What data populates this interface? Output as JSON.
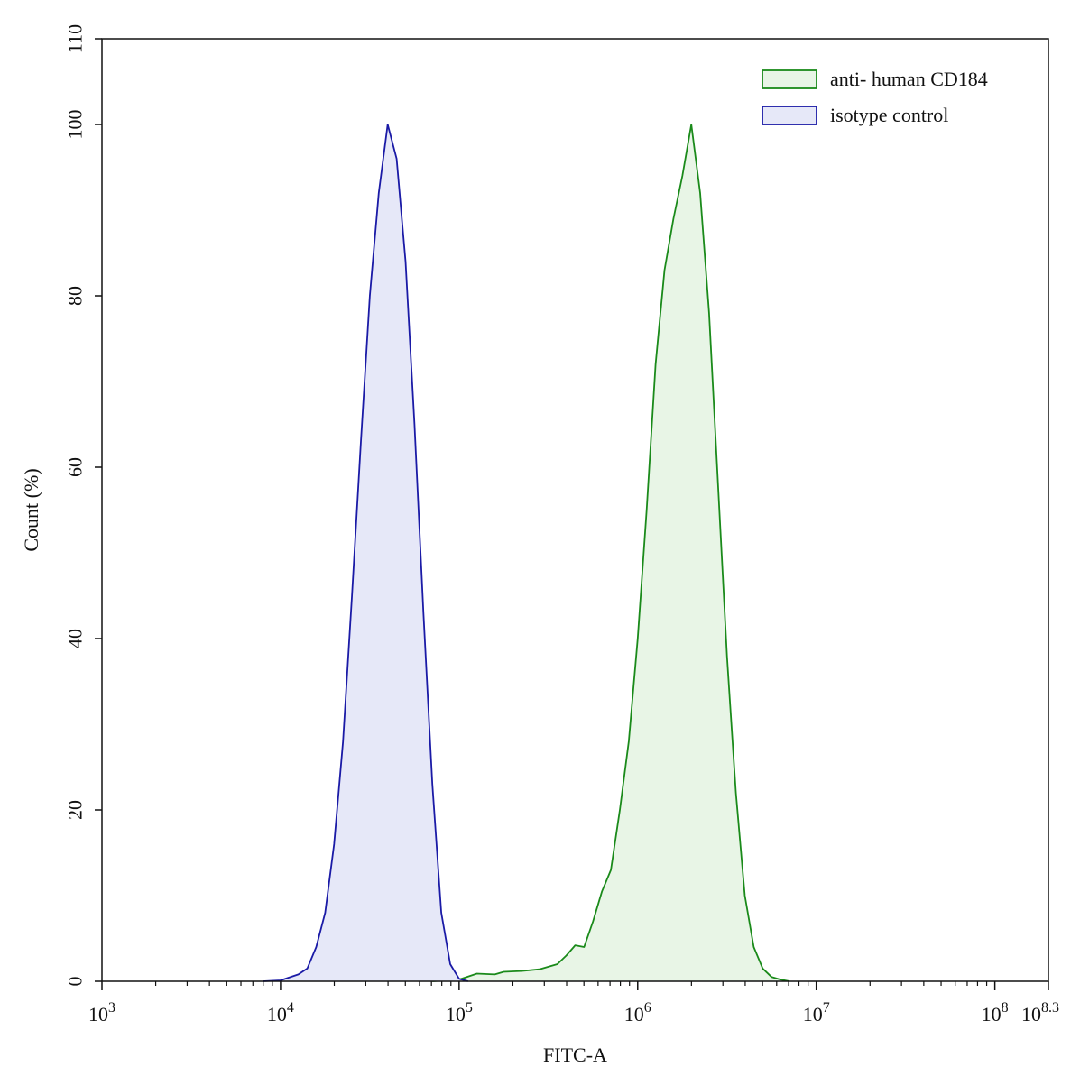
{
  "chart_data": {
    "type": "area",
    "xlabel": "FITC-A",
    "ylabel": "Count  (%)",
    "x_scale": "log10",
    "xlim": [
      1000,
      199526231
    ],
    "ylim": [
      0,
      110
    ],
    "x_ticks": [
      {
        "value": 1000,
        "base": "10",
        "exp": "3"
      },
      {
        "value": 10000,
        "base": "10",
        "exp": "4"
      },
      {
        "value": 100000,
        "base": "10",
        "exp": "5"
      },
      {
        "value": 1000000,
        "base": "10",
        "exp": "6"
      },
      {
        "value": 10000000,
        "base": "10",
        "exp": "7"
      },
      {
        "value": 100000000,
        "base": "10",
        "exp": "8"
      },
      {
        "value": 199526231,
        "base": "10",
        "exp": "8.3"
      }
    ],
    "y_ticks": [
      0,
      20,
      40,
      60,
      80,
      100,
      110
    ],
    "grid": false,
    "legend_position": "top-right",
    "series": [
      {
        "name": "anti- human CD184",
        "color": "#1a8a1a",
        "fill": "#e8f5e6",
        "points": [
          [
            70795,
            0
          ],
          [
            100000,
            0.2
          ],
          [
            125893,
            0.9
          ],
          [
            158489,
            0.8
          ],
          [
            177828,
            1.1
          ],
          [
            223872,
            1.2
          ],
          [
            281838,
            1.4
          ],
          [
            354813,
            2.0
          ],
          [
            398107,
            3.0
          ],
          [
            446684,
            4.2
          ],
          [
            501187,
            4.0
          ],
          [
            562341,
            7.0
          ],
          [
            630957,
            10.5
          ],
          [
            707946,
            13.0
          ],
          [
            794328,
            20.0
          ],
          [
            891251,
            28.0
          ],
          [
            1000000,
            40.0
          ],
          [
            1122018,
            55.0
          ],
          [
            1258925,
            72.0
          ],
          [
            1412538,
            83.0
          ],
          [
            1584893,
            89.0
          ],
          [
            1778279,
            94.0
          ],
          [
            1995262,
            100.0
          ],
          [
            2238721,
            92.0
          ],
          [
            2511886,
            78.0
          ],
          [
            2818383,
            58.0
          ],
          [
            3162278,
            38.0
          ],
          [
            3548134,
            22.0
          ],
          [
            3981072,
            10.0
          ],
          [
            4466836,
            4.0
          ],
          [
            5011872,
            1.5
          ],
          [
            5623413,
            0.5
          ],
          [
            6309573,
            0.2
          ],
          [
            7079458,
            0
          ]
        ]
      },
      {
        "name": "isotype control",
        "color": "#1a1aa6",
        "fill": "#e6e8f8",
        "points": [
          [
            7943,
            0
          ],
          [
            10000,
            0.1
          ],
          [
            12589,
            0.8
          ],
          [
            14125,
            1.5
          ],
          [
            15849,
            4.0
          ],
          [
            17783,
            8.0
          ],
          [
            19953,
            16.0
          ],
          [
            22387,
            28.0
          ],
          [
            25119,
            45.0
          ],
          [
            28184,
            63.0
          ],
          [
            31623,
            80.0
          ],
          [
            35481,
            92.0
          ],
          [
            39811,
            100.0
          ],
          [
            44668,
            96.0
          ],
          [
            50119,
            84.0
          ],
          [
            56234,
            65.0
          ],
          [
            63096,
            43.0
          ],
          [
            70795,
            23.0
          ],
          [
            79433,
            8.0
          ],
          [
            89125,
            2.0
          ],
          [
            100000,
            0.3
          ],
          [
            112202,
            0
          ]
        ]
      }
    ]
  }
}
